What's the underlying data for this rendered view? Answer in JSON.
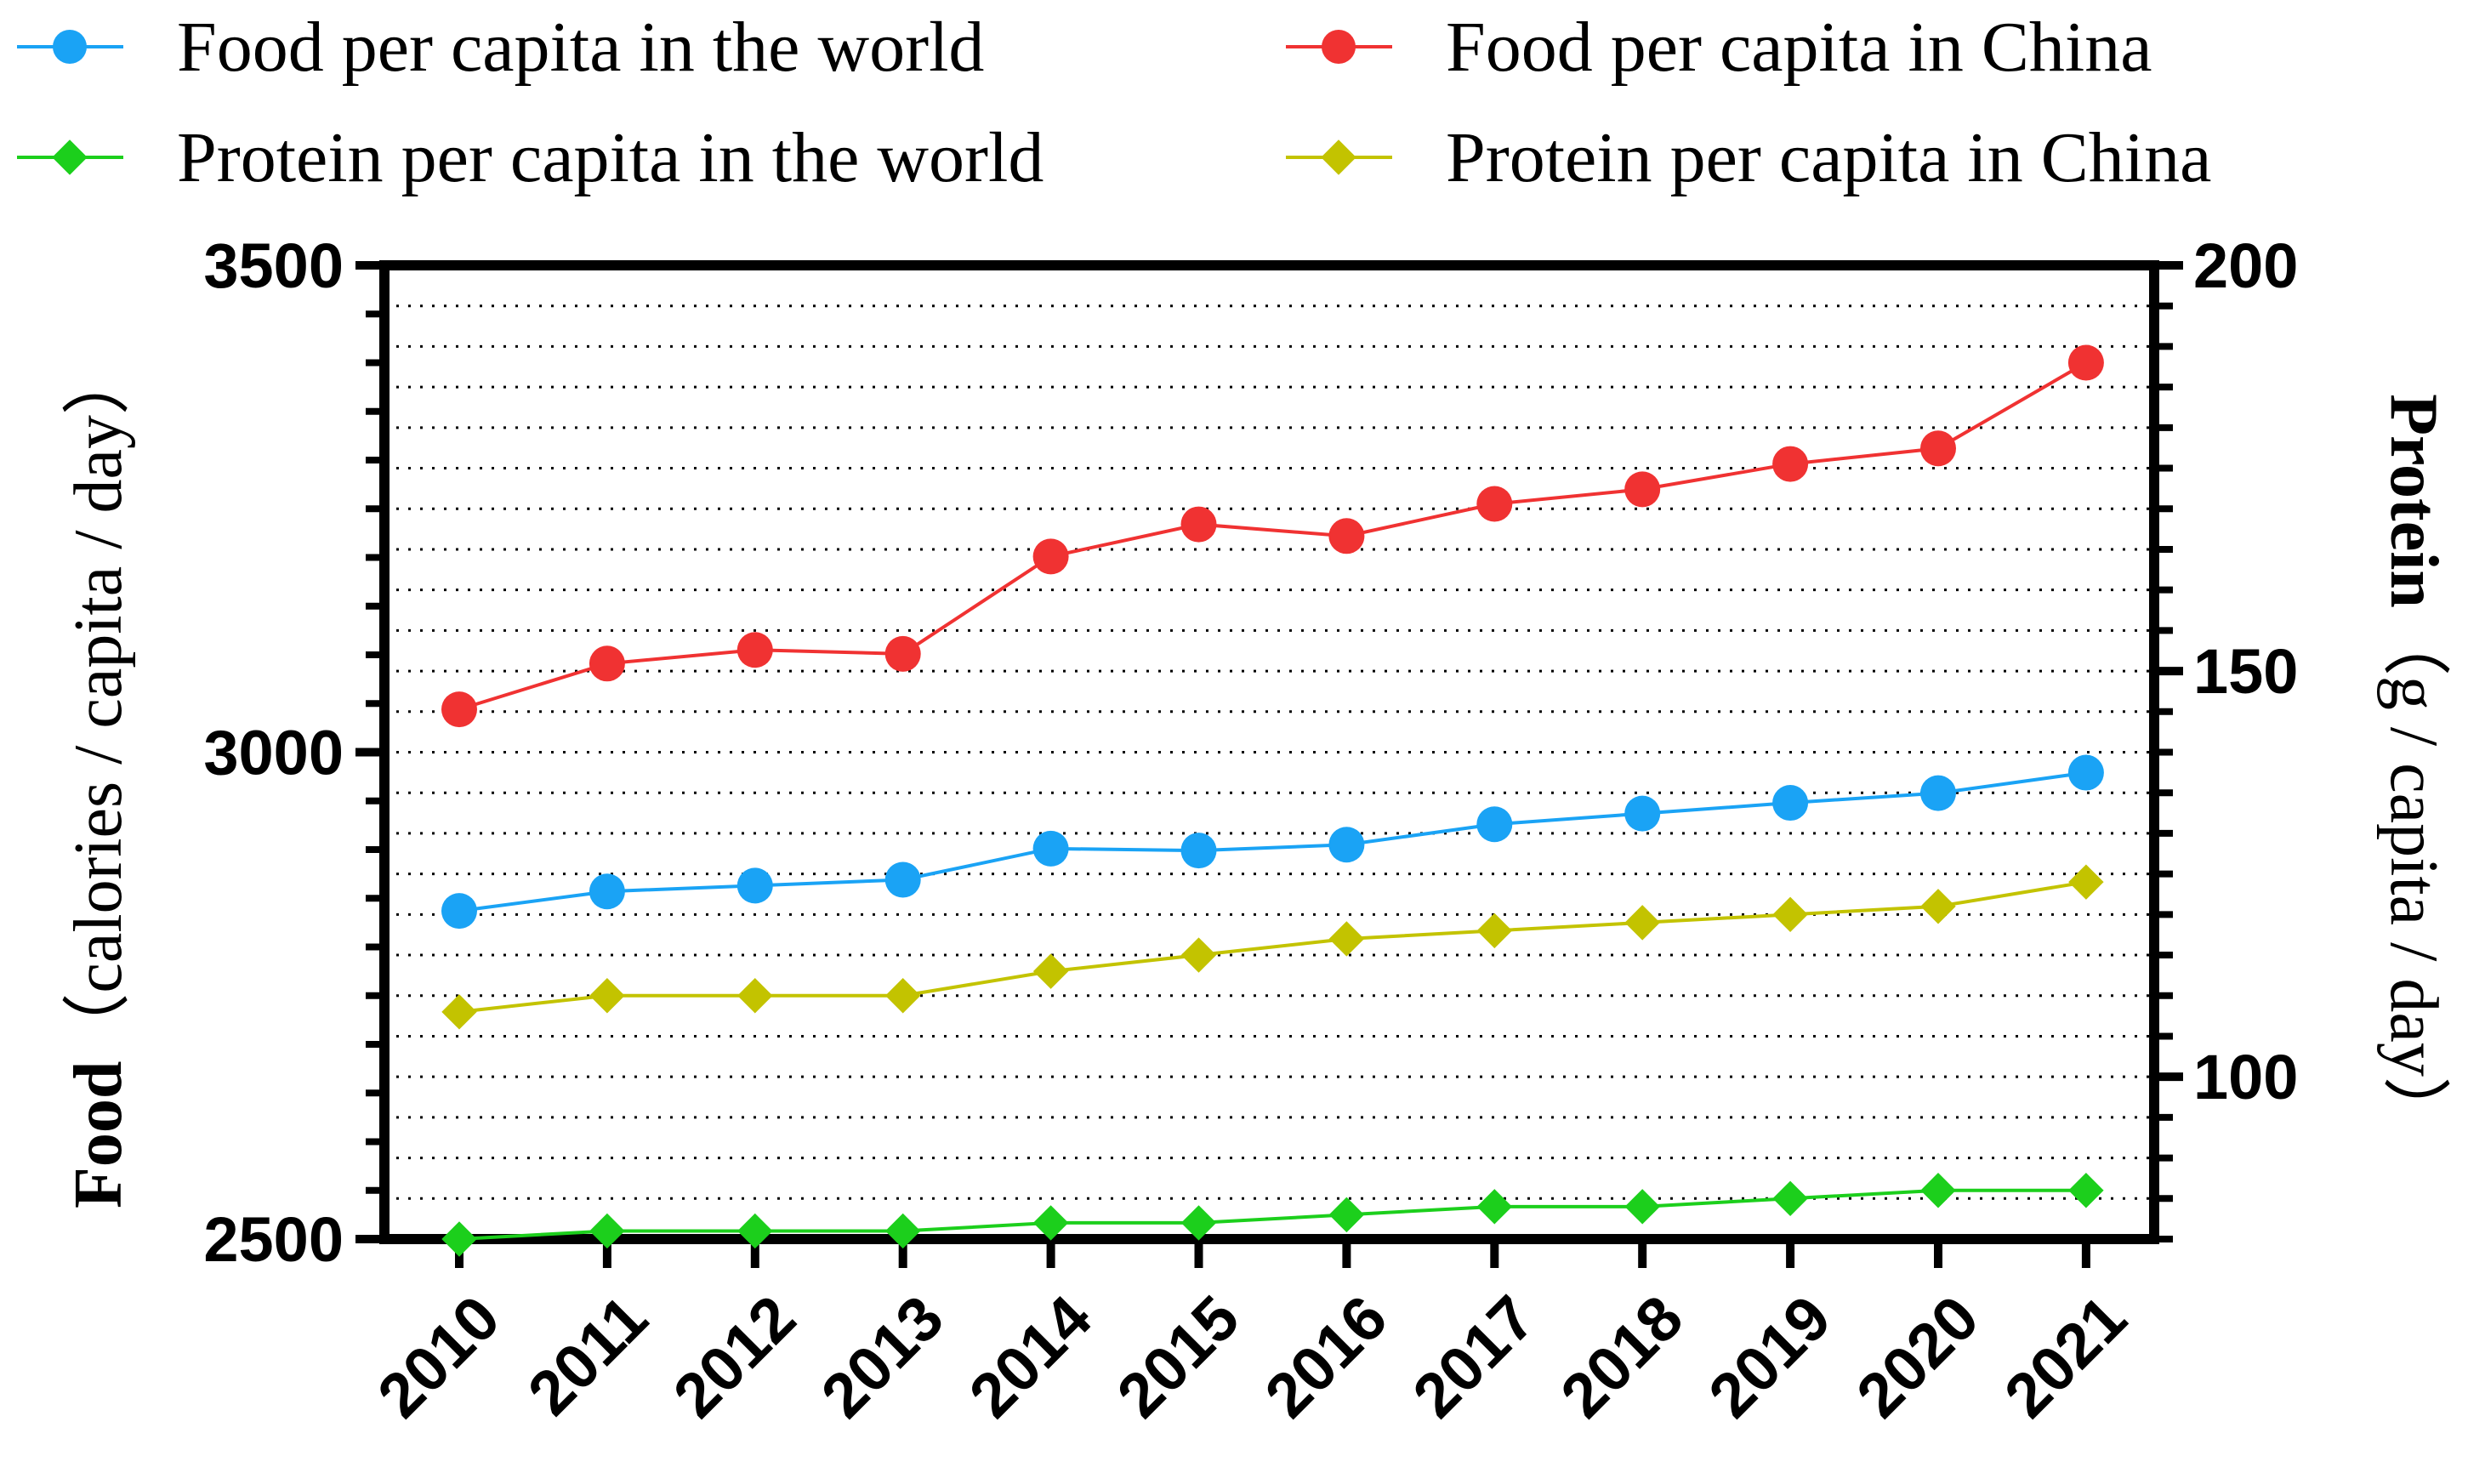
{
  "chart_data": {
    "type": "line",
    "categories": [
      "2010",
      "2011",
      "2012",
      "2013",
      "2014",
      "2015",
      "2016",
      "2017",
      "2018",
      "2019",
      "2020",
      "2021"
    ],
    "series": [
      {
        "name": "Food per capita in the world",
        "axis": "left",
        "marker": "circle",
        "color": "#1aa3f5",
        "values": [
          2837,
          2857,
          2863,
          2869,
          2901,
          2899,
          2905,
          2926,
          2937,
          2948,
          2958,
          2979
        ]
      },
      {
        "name": "Food per capita in China",
        "axis": "left",
        "marker": "circle",
        "color": "#f03232",
        "values": [
          3044,
          3091,
          3105,
          3101,
          3201,
          3234,
          3222,
          3255,
          3270,
          3296,
          3312,
          3400
        ]
      },
      {
        "name": "Protein per capita in the world",
        "axis": "right",
        "marker": "diamond",
        "color": "#1ccf1c",
        "values": [
          80,
          81,
          81,
          81,
          82,
          82,
          83,
          84,
          84,
          85,
          86,
          86
        ]
      },
      {
        "name": "Protein per capita in China",
        "axis": "right",
        "marker": "diamond",
        "color": "#c3c300",
        "values": [
          108,
          110,
          110,
          110,
          113,
          115,
          117,
          118,
          119,
          120,
          121,
          124
        ]
      }
    ],
    "left_axis": {
      "label_bold": "Food",
      "label_rest": "（calories / capita / day）",
      "ylim": [
        2500,
        3500
      ],
      "ticks": [
        "2500",
        "3000",
        "3500"
      ]
    },
    "right_axis": {
      "label_bold": "Protein",
      "label_rest": "（g / capita / day）",
      "ylim": [
        80,
        200
      ],
      "ticks": [
        "100",
        "150",
        "200"
      ]
    },
    "grid": "horizontal-dotted",
    "legend_position": "top"
  }
}
